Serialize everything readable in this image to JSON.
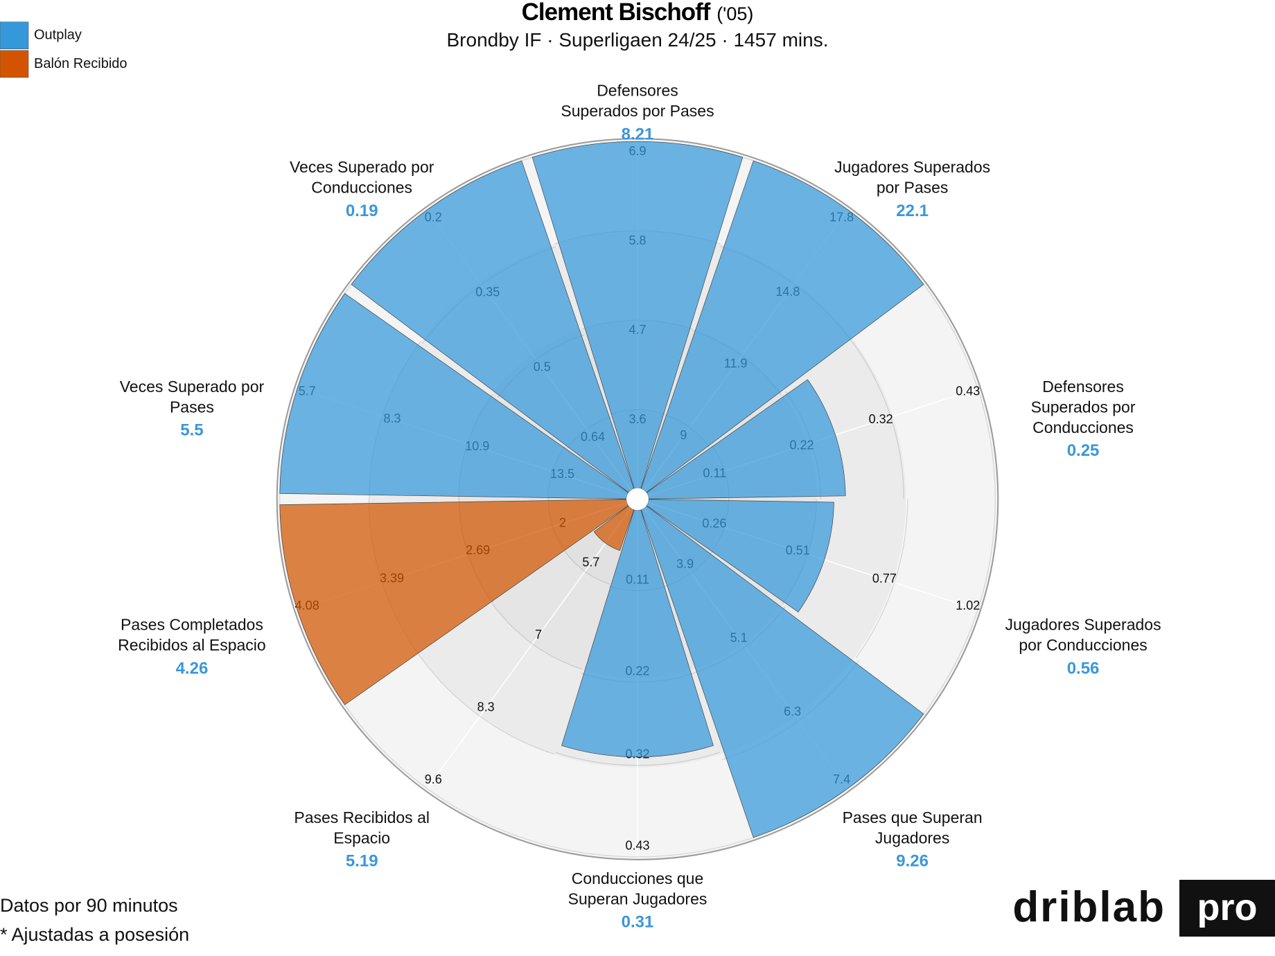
{
  "chart_data": {
    "type": "pizza",
    "title": "Clement Bischoff",
    "title_note": "('05)",
    "subtitle": "Brondby IF · Superligaen 24/25 · 1457 mins.",
    "legend": "upper left",
    "labels": [
      [
        "Defensores",
        "Superados por Pases"
      ],
      [
        "Jugadores Superados",
        "por Pases"
      ],
      [
        "Defensores",
        "Superados por",
        "Conducciones"
      ],
      [
        "Jugadores Superados",
        "por Conducciones"
      ],
      [
        "Pases que Superan",
        "Jugadores"
      ],
      [
        "Conducciones que",
        "Superan Jugadores"
      ],
      [
        "Pases Recibidos al",
        "Espacio"
      ],
      [
        "Pases Completados",
        "Recibidos al Espacio"
      ],
      [
        "Veces Superado por",
        "Pases"
      ],
      [
        "Veces Superado por",
        "Conducciones"
      ]
    ],
    "series": [
      {
        "name": "Outplay",
        "color": "#3498db",
        "values": [
          8.21,
          22.1,
          0.25,
          0.56,
          9.26,
          0.31,
          null,
          null,
          5.5,
          0.19
        ]
      },
      {
        "name": "Balón Recibido",
        "color": "#d35400",
        "values": [
          null,
          null,
          null,
          null,
          null,
          null,
          5.19,
          4.26,
          null,
          null
        ]
      }
    ],
    "value_color": "#3a97db",
    "rlims": [
      [
        2.5,
        6.9
      ],
      [
        6.1,
        17.8
      ],
      [
        0,
        0.43
      ],
      [
        0,
        1.02
      ],
      [
        2.7,
        7.4
      ],
      [
        0,
        0.43
      ],
      [
        4.4,
        9.6
      ],
      [
        1.31,
        4.08
      ],
      [
        16.1,
        5.7
      ],
      [
        0.78,
        0.2
      ]
    ],
    "rticks": [
      [
        3.6,
        4.7,
        5.8,
        6.9
      ],
      [
        9,
        11.9,
        14.8,
        17.8
      ],
      [
        0.11,
        0.22,
        0.32,
        0.43
      ],
      [
        0.26,
        0.51,
        0.77,
        1.02
      ],
      [
        3.9,
        5.1,
        6.3,
        7.4
      ],
      [
        0.11,
        0.22,
        0.32,
        0.43
      ],
      [
        5.7,
        7,
        8.3,
        9.6
      ],
      [
        2,
        2.69,
        3.39,
        4.08
      ],
      [
        13.5,
        10.9,
        8.3,
        5.7
      ],
      [
        0.64,
        0.5,
        0.35,
        0.2
      ]
    ]
  },
  "footer": {
    "notes": [
      "Datos por 90 minutos",
      "* Ajustadas a posesión"
    ],
    "logo": "driblab",
    "logo_badge": "pro"
  }
}
